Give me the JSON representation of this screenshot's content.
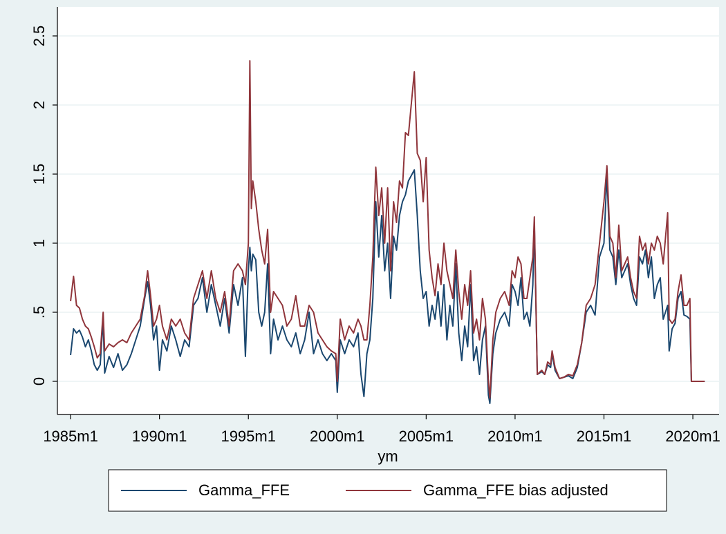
{
  "chart_data": {
    "type": "line",
    "x_label": "ym",
    "x": [
      300,
      302,
      304,
      306,
      308,
      310,
      312,
      314,
      316,
      318,
      320,
      322,
      323,
      326,
      329,
      332,
      335,
      338,
      341,
      344,
      347,
      350,
      352,
      354,
      356,
      358,
      360,
      362,
      365,
      368,
      371,
      374,
      377,
      380,
      383,
      386,
      389,
      392,
      395,
      398,
      401,
      404,
      407,
      410,
      413,
      416,
      418,
      420,
      421,
      422,
      423,
      425,
      427,
      429,
      431,
      433,
      435,
      437,
      440,
      443,
      446,
      449,
      452,
      455,
      458,
      461,
      464,
      467,
      470,
      473,
      476,
      479,
      480,
      482,
      485,
      488,
      491,
      494,
      496,
      498,
      500,
      502,
      504,
      506,
      508,
      510,
      512,
      514,
      516,
      518,
      520,
      522,
      524,
      526,
      528,
      532,
      534,
      536,
      538,
      540,
      542,
      544,
      546,
      548,
      550,
      552,
      554,
      556,
      558,
      560,
      562,
      564,
      566,
      568,
      570,
      572,
      574,
      576,
      578,
      580,
      582,
      583,
      585,
      587,
      590,
      593,
      596,
      598,
      600,
      602,
      604,
      606,
      608,
      610,
      612,
      613,
      615,
      618,
      620,
      622,
      624,
      625,
      627,
      630,
      633,
      636,
      639,
      642,
      645,
      648,
      651,
      654,
      657,
      660,
      662,
      664,
      666,
      668,
      670,
      672,
      674,
      676,
      678,
      680,
      682,
      684,
      686,
      688,
      690,
      692,
      694,
      696,
      698,
      700,
      703,
      704,
      706,
      708,
      710,
      712,
      714,
      716,
      718,
      719,
      722,
      725,
      728
    ],
    "series": [
      {
        "name": "Gamma_FFE",
        "color": "#1a476f",
        "values": [
          0.19,
          0.38,
          0.35,
          0.37,
          0.32,
          0.25,
          0.3,
          0.22,
          0.12,
          0.08,
          0.12,
          0.45,
          0.06,
          0.18,
          0.1,
          0.2,
          0.08,
          0.12,
          0.2,
          0.3,
          0.4,
          0.6,
          0.72,
          0.55,
          0.3,
          0.4,
          0.08,
          0.3,
          0.22,
          0.4,
          0.3,
          0.18,
          0.3,
          0.25,
          0.55,
          0.6,
          0.75,
          0.5,
          0.7,
          0.55,
          0.4,
          0.6,
          0.35,
          0.7,
          0.55,
          0.75,
          0.18,
          0.8,
          0.97,
          0.8,
          0.92,
          0.88,
          0.5,
          0.4,
          0.5,
          0.85,
          0.2,
          0.45,
          0.3,
          0.4,
          0.3,
          0.25,
          0.35,
          0.2,
          0.3,
          0.5,
          0.2,
          0.3,
          0.2,
          0.15,
          0.2,
          0.15,
          -0.08,
          0.3,
          0.2,
          0.3,
          0.25,
          0.35,
          0.05,
          -0.11,
          0.2,
          0.3,
          0.6,
          1.3,
          0.9,
          1.2,
          0.8,
          1.0,
          0.6,
          1.05,
          0.95,
          1.2,
          1.3,
          1.35,
          1.45,
          1.53,
          1.2,
          0.8,
          0.6,
          0.65,
          0.4,
          0.55,
          0.45,
          0.65,
          0.4,
          0.7,
          0.3,
          0.55,
          0.4,
          0.85,
          0.35,
          0.15,
          0.4,
          0.25,
          0.7,
          0.15,
          0.25,
          0.05,
          0.3,
          0.4,
          -0.1,
          -0.16,
          0.2,
          0.35,
          0.45,
          0.5,
          0.4,
          0.7,
          0.65,
          0.55,
          0.75,
          0.45,
          0.5,
          0.4,
          0.7,
          1.15,
          0.05,
          0.07,
          0.05,
          0.12,
          0.1,
          0.2,
          0.08,
          0.02,
          0.03,
          0.04,
          0.02,
          0.1,
          0.28,
          0.5,
          0.55,
          0.48,
          0.9,
          1.0,
          1.5,
          0.95,
          0.9,
          0.7,
          0.95,
          0.75,
          0.8,
          0.85,
          0.7,
          0.6,
          0.55,
          0.9,
          0.85,
          0.95,
          0.75,
          0.9,
          0.6,
          0.7,
          0.75,
          0.45,
          0.55,
          0.22,
          0.38,
          0.42,
          0.6,
          0.65,
          0.48,
          0.47,
          0.45,
          0,
          0,
          0,
          0
        ]
      },
      {
        "name": "Gamma_FFE bias adjusted",
        "color": "#90353b",
        "values": [
          0.58,
          0.76,
          0.55,
          0.53,
          0.45,
          0.4,
          0.38,
          0.32,
          0.25,
          0.17,
          0.2,
          0.5,
          0.22,
          0.27,
          0.25,
          0.28,
          0.3,
          0.28,
          0.35,
          0.4,
          0.45,
          0.62,
          0.8,
          0.62,
          0.4,
          0.45,
          0.55,
          0.4,
          0.3,
          0.45,
          0.4,
          0.45,
          0.35,
          0.3,
          0.6,
          0.7,
          0.8,
          0.6,
          0.8,
          0.6,
          0.5,
          0.65,
          0.4,
          0.8,
          0.85,
          0.8,
          0.7,
          1.0,
          2.32,
          1.25,
          1.45,
          1.3,
          1.1,
          0.95,
          0.85,
          1.1,
          0.5,
          0.65,
          0.6,
          0.55,
          0.4,
          0.45,
          0.62,
          0.4,
          0.4,
          0.55,
          0.5,
          0.35,
          0.3,
          0.25,
          0.22,
          0.2,
          0.0,
          0.45,
          0.3,
          0.4,
          0.35,
          0.45,
          0.4,
          0.3,
          0.3,
          0.55,
          0.9,
          1.55,
          1.2,
          1.4,
          1.0,
          1.4,
          0.8,
          1.3,
          1.15,
          1.45,
          1.4,
          1.8,
          1.78,
          2.24,
          1.65,
          1.6,
          1.3,
          1.62,
          0.95,
          0.75,
          0.62,
          0.85,
          0.7,
          1.0,
          0.8,
          0.7,
          0.6,
          0.95,
          0.65,
          0.45,
          0.7,
          0.55,
          0.8,
          0.35,
          0.45,
          0.3,
          0.6,
          0.45,
          0.0,
          -0.12,
          0.3,
          0.5,
          0.6,
          0.65,
          0.55,
          0.8,
          0.75,
          0.9,
          0.85,
          0.6,
          0.6,
          0.75,
          0.9,
          1.19,
          0.05,
          0.08,
          0.05,
          0.14,
          0.12,
          0.22,
          0.1,
          0.02,
          0.03,
          0.05,
          0.04,
          0.12,
          0.28,
          0.55,
          0.6,
          0.7,
          1.0,
          1.3,
          1.56,
          1.05,
          1.0,
          0.75,
          1.13,
          0.8,
          0.85,
          0.9,
          0.75,
          0.65,
          0.6,
          1.05,
          0.95,
          1.0,
          0.85,
          1.0,
          0.95,
          1.05,
          1.0,
          0.85,
          1.22,
          0.45,
          0.42,
          0.45,
          0.65,
          0.77,
          0.55,
          0.55,
          0.6,
          0,
          0,
          0,
          0
        ]
      }
    ],
    "xlim": [
      291.1,
      737.7
    ],
    "xticks": [
      {
        "value": 300,
        "label": "1985m1"
      },
      {
        "value": 360,
        "label": "1990m1"
      },
      {
        "value": 420,
        "label": "1995m1"
      },
      {
        "value": 480,
        "label": "2000m1"
      },
      {
        "value": 540,
        "label": "2005m1"
      },
      {
        "value": 600,
        "label": "2010m1"
      },
      {
        "value": 660,
        "label": "2015m1"
      },
      {
        "value": 720,
        "label": "2020m1"
      }
    ],
    "ylim": [
      -0.24,
      2.71
    ],
    "yticks": [
      0,
      {
        "value": 0.5,
        "label": ".5"
      },
      1,
      1.5,
      2,
      2.5
    ],
    "grid": true,
    "legend": "bottom"
  }
}
